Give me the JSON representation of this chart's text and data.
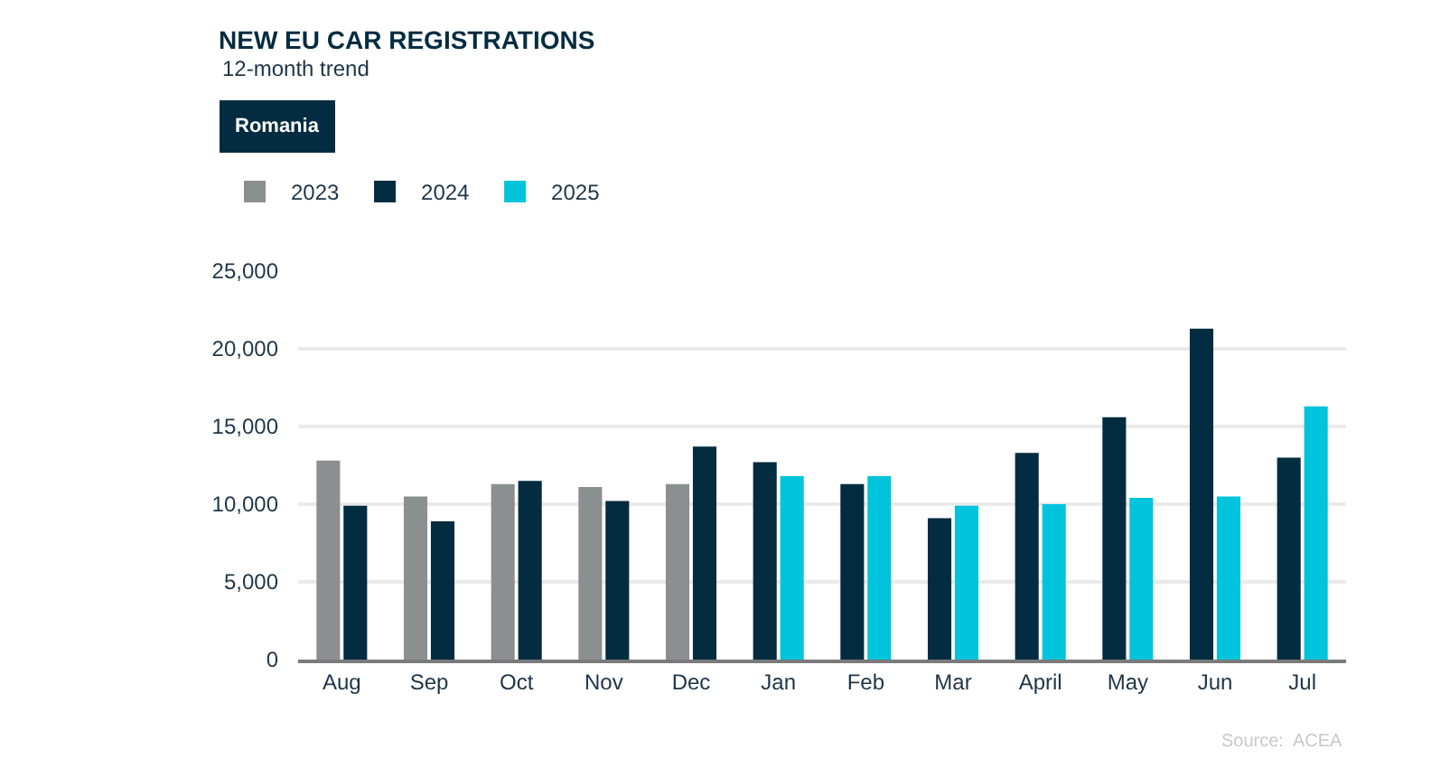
{
  "chart_data": {
    "type": "bar",
    "title": "NEW EU CAR REGISTRATIONS",
    "subtitle": "12-month trend",
    "categories": [
      "Aug",
      "Sep",
      "Oct",
      "Nov",
      "Dec",
      "Jan",
      "Feb",
      "Mar",
      "April",
      "May",
      "Jun",
      "Jul"
    ],
    "series": [
      {
        "name": "2023",
        "color": "#8c8f8f",
        "values": [
          12800,
          10500,
          11300,
          11100,
          11300,
          null,
          null,
          null,
          null,
          null,
          null,
          null
        ]
      },
      {
        "name": "2024",
        "color": "#032c40",
        "values": [
          9900,
          8900,
          11500,
          10200,
          13700,
          12700,
          11300,
          9100,
          13300,
          15600,
          21300,
          13000
        ]
      },
      {
        "name": "2025",
        "color": "#00c4dc",
        "values": [
          null,
          null,
          null,
          null,
          null,
          11800,
          11800,
          9900,
          10000,
          10400,
          10500,
          16300
        ]
      }
    ],
    "ylim": [
      0,
      25000
    ],
    "yticks": [
      0,
      {
        "value": 5000,
        "label": "5,000"
      },
      {
        "value": 10000,
        "label": "10,000"
      },
      {
        "value": 15000,
        "label": "15,000"
      },
      {
        "value": 20000,
        "label": "20,000"
      },
      {
        "value": 25000,
        "label": "25,000"
      }
    ],
    "grid": "y",
    "legend": "top left",
    "annotations": [
      "Romania",
      "Source:  ACEA"
    ]
  }
}
